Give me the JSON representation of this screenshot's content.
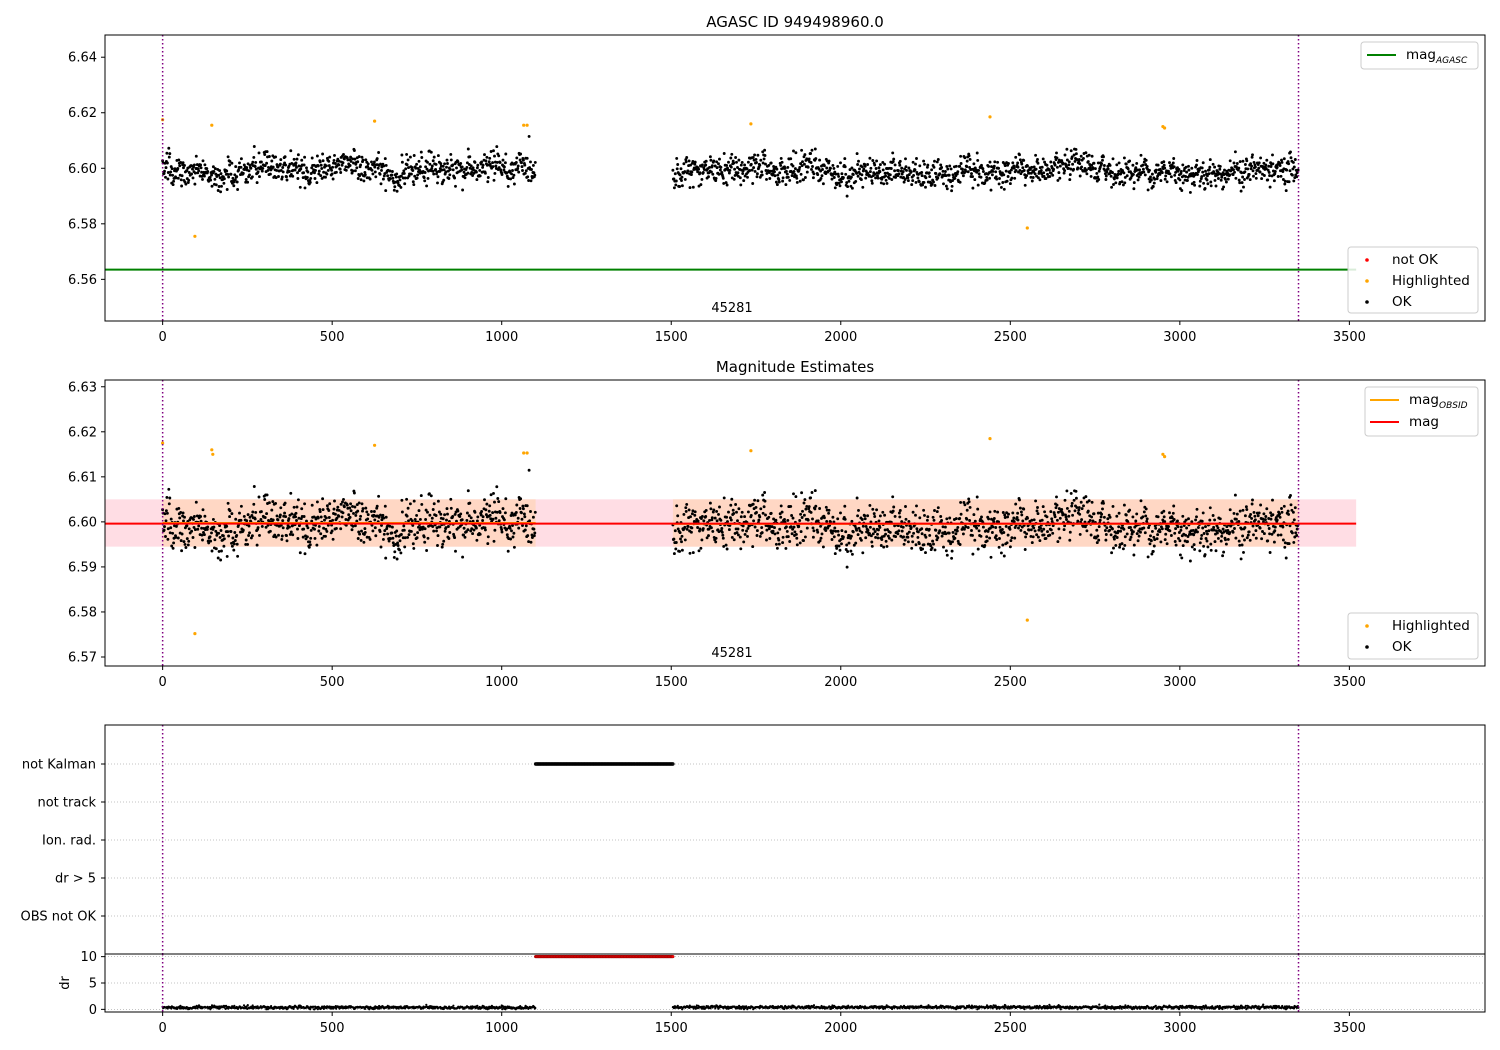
{
  "chart_data": [
    {
      "type": "scatter",
      "title": "AGASC ID 949498960.0",
      "xlabel": "",
      "ylabel": "",
      "xlim": [
        -170,
        3900
      ],
      "ylim": [
        6.545,
        6.648
      ],
      "xticks": [
        "0",
        "500",
        "1000",
        "1500",
        "2000",
        "2500",
        "3000",
        "3500"
      ],
      "yticks": [
        "6.56",
        "6.58",
        "6.60",
        "6.62",
        "6.64"
      ],
      "annotation": "45281",
      "reference_line": {
        "label": "mag",
        "subscript": "AGASC",
        "value": 6.5635,
        "color": "#008000"
      },
      "vlines": [
        0,
        3350
      ],
      "grid": false,
      "legend_placement_lines": "top-right",
      "legend_placement_points": "bottom-right",
      "series": [
        {
          "name": "not OK",
          "color": "#ff0000",
          "values": []
        },
        {
          "name": "Highlighted",
          "color": "#ffa500",
          "points": [
            [
              0,
              6.6175
            ],
            [
              95,
              6.5755
            ],
            [
              145,
              6.6155
            ],
            [
              625,
              6.617
            ],
            [
              1065,
              6.6155
            ],
            [
              1075,
              6.6155
            ],
            [
              1735,
              6.616
            ],
            [
              2440,
              6.6185
            ],
            [
              2550,
              6.5785
            ],
            [
              2950,
              6.615
            ],
            [
              2955,
              6.6145
            ]
          ]
        },
        {
          "name": "OK",
          "color": "#000000",
          "segments": [
            {
              "x_start": 0,
              "x_end": 1100,
              "mean": 6.5995,
              "sd": 0.0045
            },
            {
              "x_start": 1505,
              "x_end": 3350,
              "mean": 6.599,
              "sd": 0.0045
            }
          ]
        }
      ]
    },
    {
      "type": "scatter",
      "title": "Magnitude Estimates",
      "xlabel": "",
      "ylabel": "",
      "xlim": [
        -170,
        3900
      ],
      "ylim": [
        6.568,
        6.6315
      ],
      "xticks": [
        "0",
        "500",
        "1000",
        "1500",
        "2000",
        "2500",
        "3000",
        "3500"
      ],
      "yticks": [
        "6.57",
        "6.58",
        "6.59",
        "6.60",
        "6.61",
        "6.62",
        "6.63"
      ],
      "annotation": "45281",
      "vlines": [
        0,
        3350
      ],
      "grid": false,
      "legend_placement_lines": "top-right",
      "legend_placement_points": "bottom-right",
      "bands": [
        {
          "x_range": [
            -170,
            3520
          ],
          "y_range": [
            6.5945,
            6.605
          ],
          "color": "#ffdde4"
        },
        {
          "x_range": [
            0,
            1100
          ],
          "y_range": [
            6.5945,
            6.605
          ],
          "color": "#ffd7c4"
        },
        {
          "x_range": [
            1505,
            3350
          ],
          "y_range": [
            6.5945,
            6.605
          ],
          "color": "#ffd7c4"
        }
      ],
      "lines": [
        {
          "label": "mag",
          "subscript": "OBSID",
          "color": "#ffa500",
          "segments": [
            [
              0,
              1100,
              6.5998
            ],
            [
              1505,
              3350,
              6.5995
            ]
          ]
        },
        {
          "label": "mag",
          "color": "#ff0000",
          "segments": [
            [
              -170,
              3520,
              6.5996
            ]
          ]
        }
      ],
      "series": [
        {
          "name": "Highlighted",
          "color": "#ffa500",
          "points": [
            [
              0,
              6.6175
            ],
            [
              95,
              6.5752
            ],
            [
              145,
              6.616
            ],
            [
              148,
              6.615
            ],
            [
              625,
              6.617
            ],
            [
              1065,
              6.6153
            ],
            [
              1075,
              6.6153
            ],
            [
              1735,
              6.6158
            ],
            [
              2440,
              6.6185
            ],
            [
              2550,
              6.5782
            ],
            [
              2950,
              6.615
            ],
            [
              2955,
              6.6145
            ]
          ]
        },
        {
          "name": "OK",
          "color": "#000000",
          "segments": [
            {
              "x_start": 0,
              "x_end": 1100,
              "mean": 6.5995,
              "sd": 0.0045
            },
            {
              "x_start": 1505,
              "x_end": 3350,
              "mean": 6.599,
              "sd": 0.0045
            }
          ]
        }
      ]
    },
    {
      "type": "scatter",
      "title": "",
      "xlabel": "",
      "ylabel": "",
      "xlim": [
        -170,
        3900
      ],
      "categories": [
        "not Kalman",
        "not track",
        "Ion. rad.",
        "dr > 5",
        "OBS not OK"
      ],
      "vlines": [
        0,
        3350
      ],
      "grid": "horizontal dotted",
      "flags": [
        {
          "category": "not Kalman",
          "x_start": 1100,
          "x_end": 1505,
          "color": "#000000"
        }
      ]
    },
    {
      "type": "scatter",
      "title": "",
      "xlabel": "",
      "ylabel": "dr",
      "xlim": [
        -170,
        3900
      ],
      "ylim": [
        -0.5,
        10.5
      ],
      "xticks": [
        "0",
        "500",
        "1000",
        "1500",
        "2000",
        "2500",
        "3000",
        "3500"
      ],
      "yticks": [
        "0",
        "5",
        "10"
      ],
      "vlines": [
        0,
        3350
      ],
      "grid": "horizontal dotted",
      "series": [
        {
          "name": "dr",
          "color": "#000000",
          "segments": [
            {
              "x_start": 0,
              "x_end": 1100,
              "mean": 0.35,
              "sd": 0.15
            },
            {
              "x_start": 1505,
              "x_end": 3350,
              "mean": 0.4,
              "sd": 0.15
            }
          ]
        },
        {
          "name": "dr clipped",
          "color": "#ff0000",
          "segments": [
            {
              "x_start": 1100,
              "x_end": 1505,
              "value": 10
            }
          ]
        }
      ]
    }
  ]
}
